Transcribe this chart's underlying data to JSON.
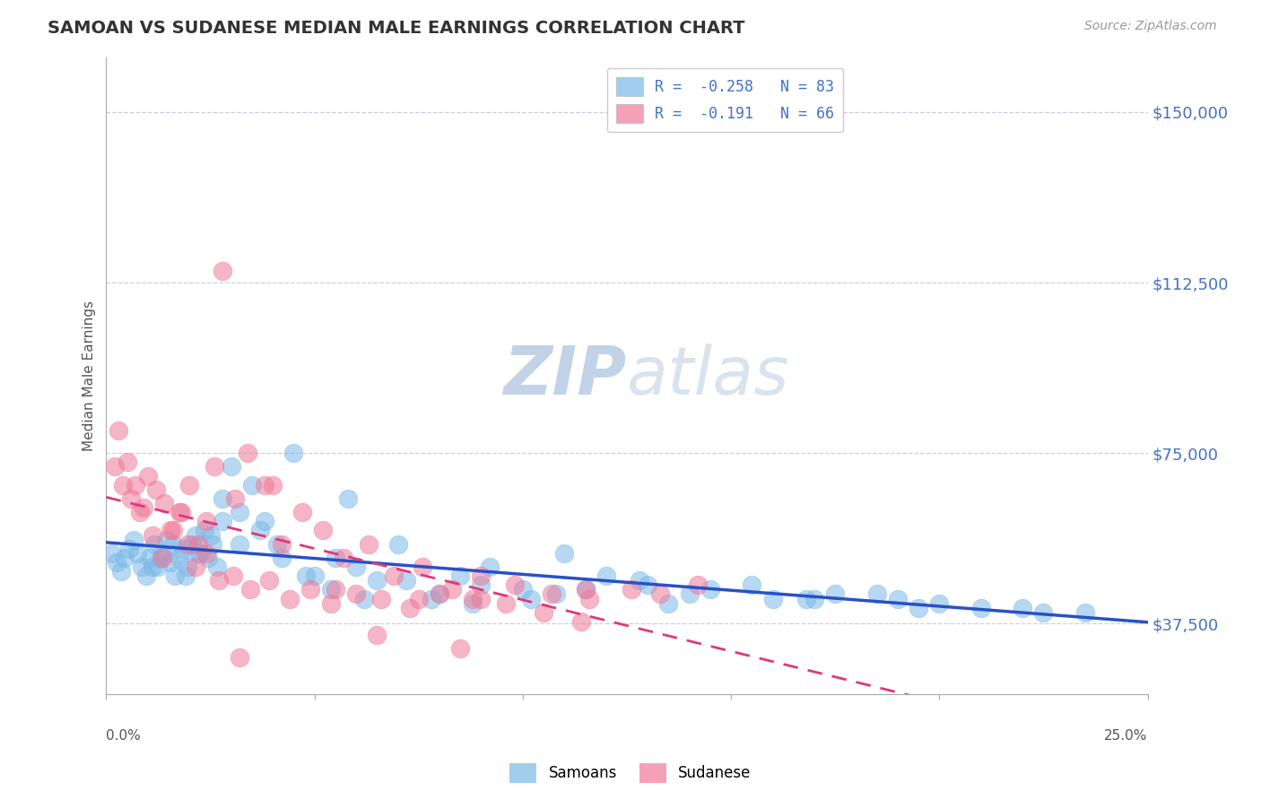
{
  "title": "SAMOAN VS SUDANESE MEDIAN MALE EARNINGS CORRELATION CHART",
  "source": "Source: ZipAtlas.com",
  "ylabel": "Median Male Earnings",
  "yticks": [
    37500,
    75000,
    112500,
    150000
  ],
  "ytick_labels": [
    "$37,500",
    "$75,000",
    "$112,500",
    "$150,000"
  ],
  "xlim": [
    0.0,
    25.0
  ],
  "ylim": [
    22000,
    162000
  ],
  "legend_line1": "R =  -0.258   N = 83",
  "legend_line2": "R =  -0.191   N = 66",
  "samoan_color": "#7ab8e8",
  "sudanese_color": "#f07898",
  "trend_samoan_color": "#2850c8",
  "trend_sudanese_color": "#e03878",
  "watermark_color": "#ccd8e8",
  "background_color": "#ffffff",
  "grid_color": "#c8d0d8",
  "samoans_x": [
    0.15,
    0.25,
    0.35,
    0.45,
    0.55,
    0.65,
    0.75,
    0.85,
    0.95,
    1.05,
    1.15,
    1.25,
    1.35,
    1.45,
    1.55,
    1.65,
    1.75,
    1.85,
    1.95,
    2.05,
    2.15,
    2.25,
    2.35,
    2.45,
    2.55,
    2.65,
    2.8,
    3.0,
    3.2,
    3.5,
    3.8,
    4.1,
    4.5,
    5.0,
    5.5,
    6.0,
    6.5,
    7.0,
    7.8,
    8.5,
    9.2,
    10.0,
    11.0,
    12.0,
    13.0,
    14.5,
    16.0,
    17.5,
    19.0,
    21.0,
    1.1,
    1.3,
    1.6,
    1.9,
    2.2,
    2.5,
    2.8,
    3.2,
    3.7,
    4.2,
    4.8,
    5.4,
    6.2,
    7.2,
    8.0,
    9.0,
    10.2,
    11.5,
    12.8,
    14.0,
    15.5,
    17.0,
    18.5,
    20.0,
    22.0,
    23.5,
    5.8,
    8.8,
    10.8,
    13.5,
    16.8,
    19.5,
    22.5
  ],
  "samoans_y": [
    53000,
    51000,
    49000,
    52000,
    54000,
    56000,
    53000,
    50000,
    48000,
    52000,
    55000,
    50000,
    53000,
    56000,
    51000,
    48000,
    52000,
    54000,
    50000,
    55000,
    57000,
    53000,
    58000,
    52000,
    55000,
    50000,
    65000,
    72000,
    62000,
    68000,
    60000,
    55000,
    75000,
    48000,
    52000,
    50000,
    47000,
    55000,
    43000,
    48000,
    50000,
    45000,
    53000,
    48000,
    46000,
    45000,
    43000,
    44000,
    43000,
    41000,
    50000,
    52000,
    55000,
    48000,
    53000,
    57000,
    60000,
    55000,
    58000,
    52000,
    48000,
    45000,
    43000,
    47000,
    44000,
    46000,
    43000,
    45000,
    47000,
    44000,
    46000,
    43000,
    44000,
    42000,
    41000,
    40000,
    65000,
    42000,
    44000,
    42000,
    43000,
    41000,
    40000
  ],
  "sudanese_x": [
    0.2,
    0.4,
    0.6,
    0.8,
    1.0,
    1.2,
    1.4,
    1.6,
    1.8,
    2.0,
    2.2,
    2.4,
    2.6,
    2.8,
    3.1,
    3.4,
    3.8,
    4.2,
    4.7,
    5.2,
    5.7,
    6.3,
    6.9,
    7.6,
    8.3,
    9.0,
    9.8,
    10.7,
    11.6,
    12.6,
    0.3,
    0.5,
    0.7,
    0.9,
    1.1,
    1.35,
    1.55,
    1.75,
    1.95,
    2.15,
    2.4,
    2.7,
    3.05,
    3.45,
    3.9,
    4.4,
    4.9,
    5.4,
    6.0,
    6.6,
    7.3,
    8.0,
    8.8,
    9.6,
    10.5,
    11.4,
    3.2,
    4.0,
    5.5,
    6.5,
    7.5,
    8.5,
    9.0,
    11.5,
    13.3,
    14.2
  ],
  "sudanese_y": [
    72000,
    68000,
    65000,
    62000,
    70000,
    67000,
    64000,
    58000,
    62000,
    68000,
    55000,
    60000,
    72000,
    115000,
    65000,
    75000,
    68000,
    55000,
    62000,
    58000,
    52000,
    55000,
    48000,
    50000,
    45000,
    48000,
    46000,
    44000,
    43000,
    45000,
    80000,
    73000,
    68000,
    63000,
    57000,
    52000,
    58000,
    62000,
    55000,
    50000,
    53000,
    47000,
    48000,
    45000,
    47000,
    43000,
    45000,
    42000,
    44000,
    43000,
    41000,
    44000,
    43000,
    42000,
    40000,
    38000,
    30000,
    68000,
    45000,
    35000,
    43000,
    32000,
    43000,
    45000,
    44000,
    46000
  ]
}
